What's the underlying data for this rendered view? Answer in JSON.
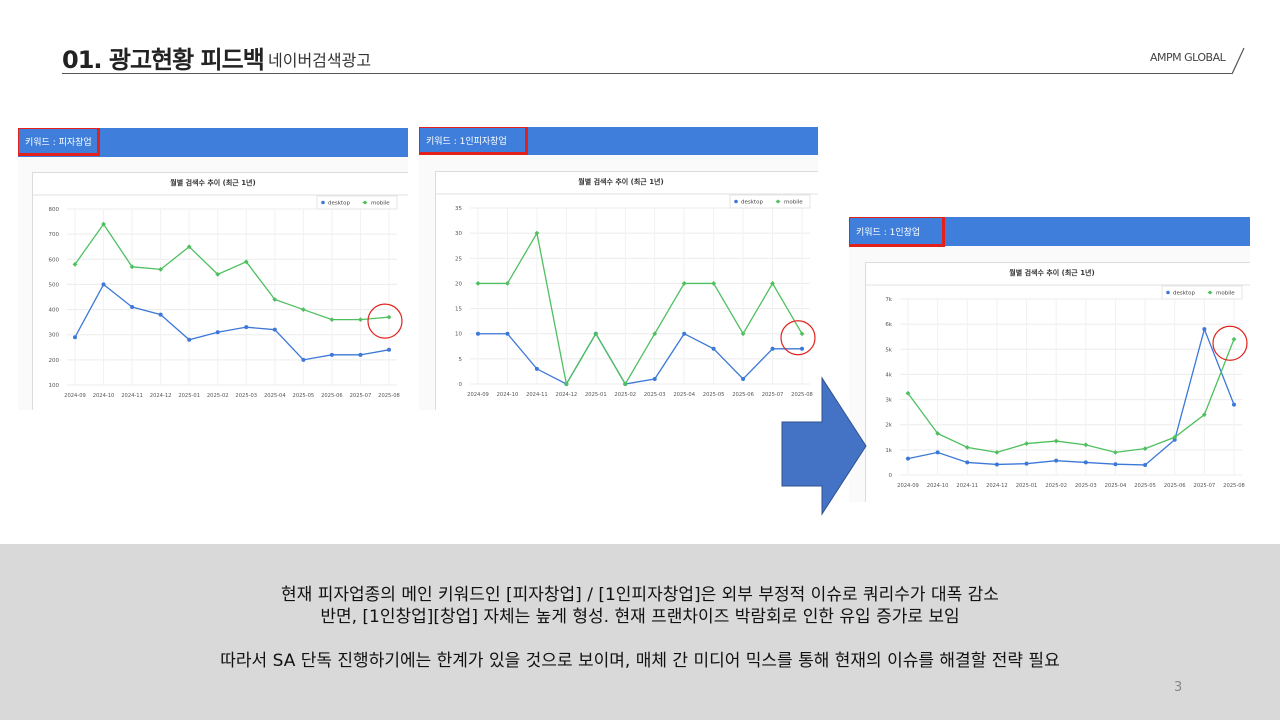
{
  "header": {
    "title": "01. 광고현황 피드백",
    "subtitle": "네이버검색광고",
    "brand": "AMPM GLOBAL"
  },
  "colors": {
    "desktop": "#3b78d8",
    "mobile": "#4ec05f",
    "keyword_bar": "#3f7fdb",
    "highlight": "#e2211c",
    "arrow": "#4472c4"
  },
  "chart_data": [
    {
      "type": "line",
      "keyword_label": "키워드 : 피자창업",
      "title": "월별 검색수 추이 (최근 1년)",
      "legend": "top-right",
      "grid": true,
      "x": [
        "2024-09",
        "2024-10",
        "2024-11",
        "2024-12",
        "2025-01",
        "2025-02",
        "2025-03",
        "2025-04",
        "2025-05",
        "2025-06",
        "2025-07",
        "2025-08"
      ],
      "y_ticks": [
        "100",
        "200",
        "300",
        "400",
        "500",
        "600",
        "700",
        "800"
      ],
      "ylim": [
        100,
        800
      ],
      "series": [
        {
          "name": "desktop",
          "values": [
            290,
            500,
            410,
            380,
            280,
            310,
            330,
            320,
            200,
            220,
            220,
            240
          ]
        },
        {
          "name": "mobile",
          "values": [
            580,
            740,
            570,
            560,
            650,
            540,
            590,
            440,
            400,
            360,
            360,
            370
          ]
        }
      ]
    },
    {
      "type": "line",
      "keyword_label": "키워드 : 1인피자창업",
      "title": "월별 검색수 추이 (최근 1년)",
      "legend": "top-right",
      "grid": true,
      "x": [
        "2024-09",
        "2024-10",
        "2024-11",
        "2024-12",
        "2025-01",
        "2025-02",
        "2025-03",
        "2025-04",
        "2025-05",
        "2025-06",
        "2025-07",
        "2025-08"
      ],
      "y_ticks": [
        "0",
        "5",
        "10",
        "15",
        "20",
        "25",
        "30",
        "35"
      ],
      "ylim": [
        0,
        35
      ],
      "series": [
        {
          "name": "desktop",
          "values": [
            10,
            10,
            3,
            0,
            10,
            0,
            1,
            10,
            7,
            1,
            7,
            7
          ]
        },
        {
          "name": "mobile",
          "values": [
            20,
            20,
            30,
            0,
            10,
            0,
            10,
            20,
            20,
            10,
            20,
            10
          ]
        }
      ]
    },
    {
      "type": "line",
      "keyword_label": "키워드 : 1인창업",
      "title": "월별 검색수 추이 (최근 1년)",
      "legend": "top-right",
      "grid": true,
      "x": [
        "2024-09",
        "2024-10",
        "2024-11",
        "2024-12",
        "2025-01",
        "2025-02",
        "2025-03",
        "2025-04",
        "2025-05",
        "2025-06",
        "2025-07",
        "2025-08"
      ],
      "y_ticks": [
        "0",
        "1k",
        "2k",
        "3k",
        "4k",
        "5k",
        "6k",
        "7k"
      ],
      "ylim": [
        0,
        7000
      ],
      "series": [
        {
          "name": "desktop",
          "values": [
            650,
            900,
            500,
            420,
            450,
            570,
            500,
            430,
            400,
            1400,
            5800,
            2800
          ]
        },
        {
          "name": "mobile",
          "values": [
            3250,
            1650,
            1100,
            900,
            1250,
            1350,
            1200,
            900,
            1050,
            1500,
            2400,
            5400
          ]
        }
      ]
    }
  ],
  "footer": {
    "line1": "현재 피자업종의 메인 키워드인 [피자창업] / [1인피자창업]은 외부 부정적 이슈로 쿼리수가 대폭 감소",
    "line2": "반면, [1인창업][창업] 자체는 높게 형성. 현재 프랜차이즈 박람회로 인한 유입 증가로 보임",
    "line3": "따라서 SA 단독 진행하기에는 한계가 있을 것으로 보이며, 매체 간 미디어 믹스를 통해 현재의 이슈를 해결할 전략 필요",
    "page_number": "3"
  }
}
